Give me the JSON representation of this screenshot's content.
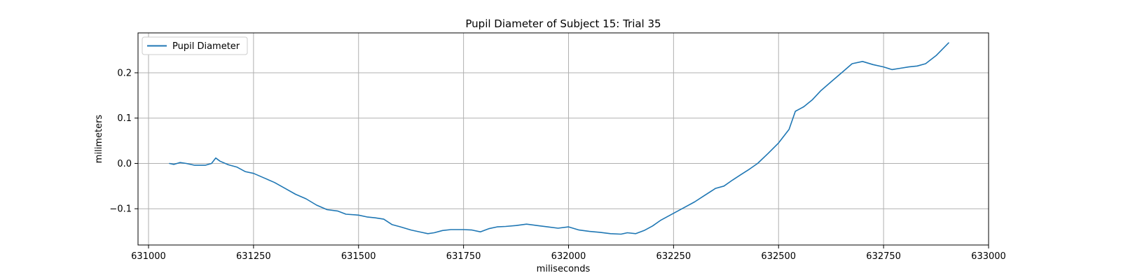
{
  "chart_data": {
    "type": "line",
    "title": "Pupil Diameter of Subject 15: Trial 35",
    "xlabel": "miliseconds",
    "ylabel": "milimeters",
    "xlim": [
      630975,
      633000
    ],
    "ylim": [
      -0.18,
      0.288
    ],
    "xticks": [
      631000,
      631250,
      631500,
      631750,
      632000,
      632250,
      632500,
      632750,
      633000
    ],
    "xtick_labels": [
      "631000",
      "631250",
      "631500",
      "631750",
      "632000",
      "632250",
      "632500",
      "632750",
      "633000"
    ],
    "yticks": [
      -0.1,
      0.0,
      0.1,
      0.2
    ],
    "ytick_labels": [
      "−0.1",
      "0.0",
      "0.1",
      "0.2"
    ],
    "grid": true,
    "legend_position": "upper-left",
    "color": "#1f77b4",
    "series": [
      {
        "name": "Pupil Diameter",
        "x": [
          631050,
          631060,
          631075,
          631090,
          631110,
          631135,
          631150,
          631160,
          631170,
          631190,
          631210,
          631230,
          631250,
          631275,
          631300,
          631325,
          631350,
          631375,
          631400,
          631425,
          631450,
          631470,
          631500,
          631520,
          631540,
          631560,
          631580,
          631600,
          631625,
          631650,
          631665,
          631680,
          631700,
          631720,
          631750,
          631770,
          631790,
          631810,
          631830,
          631850,
          631875,
          631900,
          631925,
          631950,
          631975,
          632000,
          632025,
          632050,
          632075,
          632100,
          632125,
          632140,
          632160,
          632180,
          632200,
          632220,
          632240,
          632270,
          632300,
          632320,
          632350,
          632370,
          632390,
          632410,
          632430,
          632450,
          632475,
          632500,
          632525,
          632540,
          632560,
          632580,
          632600,
          632625,
          632650,
          632675,
          632700,
          632725,
          632750,
          632770,
          632790,
          632810,
          632830,
          632850,
          632875,
          632905
        ],
        "y": [
          0.0,
          -0.002,
          0.002,
          0.0,
          -0.004,
          -0.004,
          0.0,
          0.012,
          0.005,
          -0.003,
          -0.008,
          -0.018,
          -0.022,
          -0.032,
          -0.042,
          -0.055,
          -0.068,
          -0.078,
          -0.092,
          -0.102,
          -0.105,
          -0.112,
          -0.114,
          -0.118,
          -0.12,
          -0.123,
          -0.135,
          -0.14,
          -0.147,
          -0.152,
          -0.155,
          -0.153,
          -0.148,
          -0.146,
          -0.146,
          -0.147,
          -0.151,
          -0.144,
          -0.14,
          -0.139,
          -0.137,
          -0.134,
          -0.137,
          -0.14,
          -0.143,
          -0.14,
          -0.147,
          -0.15,
          -0.152,
          -0.155,
          -0.156,
          -0.153,
          -0.155,
          -0.148,
          -0.138,
          -0.125,
          -0.115,
          -0.1,
          -0.085,
          -0.073,
          -0.055,
          -0.05,
          -0.037,
          -0.025,
          -0.013,
          0.0,
          0.022,
          0.045,
          0.075,
          0.115,
          0.125,
          0.14,
          0.16,
          0.18,
          0.2,
          0.22,
          0.225,
          0.218,
          0.213,
          0.207,
          0.21,
          0.213,
          0.215,
          0.22,
          0.238,
          0.266
        ]
      }
    ]
  }
}
